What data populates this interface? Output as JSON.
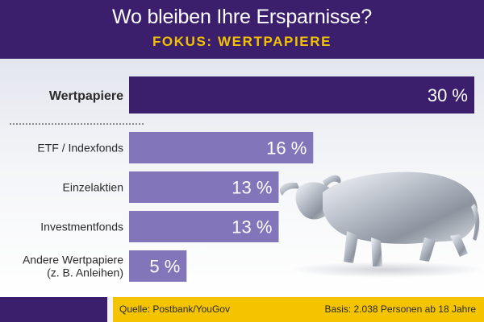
{
  "header": {
    "title": "Wo bleiben Ihre Ersparnisse?",
    "subtitle": "FOKUS: WERTPAPIERE"
  },
  "footer": {
    "source": "Quelle: Postbank/YouGov",
    "basis": "Basis: 2.038 Personen ab 18 Jahre"
  },
  "colors": {
    "header_bg": "#3b1f6d",
    "accent_yellow": "#f5c400",
    "main_bar": "#3b1f6d",
    "sub_bar": "#8275b9"
  },
  "chart_data": {
    "type": "bar",
    "orientation": "horizontal",
    "title": "Wo bleiben Ihre Ersparnisse?",
    "subtitle": "FOKUS: WERTPAPIERE",
    "categories": [
      [
        "Wertpapiere"
      ],
      [
        "ETF / Indexfonds"
      ],
      [
        "Einzelaktien"
      ],
      [
        "Investmentfonds"
      ],
      [
        "Andere Wertpapiere",
        "(z. B. Anleihen)"
      ]
    ],
    "values": [
      30,
      16,
      13,
      13,
      5
    ],
    "value_labels": [
      "30 %",
      "16 %",
      "13 %",
      "13 %",
      "5 %"
    ],
    "value_suffix": " %",
    "xlim": [
      0,
      30
    ],
    "grid": false,
    "legend": "none"
  }
}
